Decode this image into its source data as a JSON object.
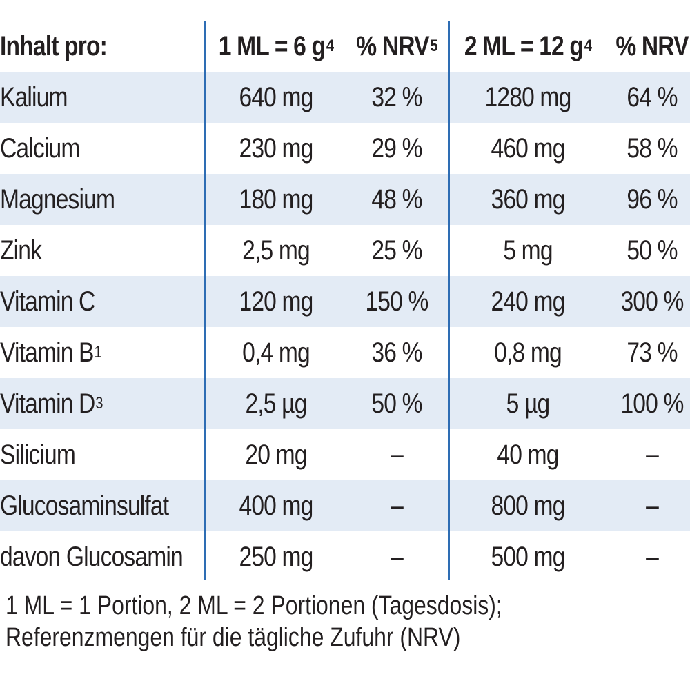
{
  "header": {
    "label": "Inhalt pro:",
    "col1": {
      "text": "1 ML = 6 g",
      "sup": "4"
    },
    "col2": {
      "text": "% NRV",
      "sup": "5"
    },
    "col3": {
      "text": "2 ML = 12 g",
      "sup": "4"
    },
    "col4": {
      "text": "% NRV"
    }
  },
  "rows": [
    {
      "name": "Kalium",
      "sub": "",
      "v1": "640 mg",
      "p1": "32 %",
      "v2": "1280 mg",
      "p2": "64 %"
    },
    {
      "name": "Calcium",
      "sub": "",
      "v1": "230 mg",
      "p1": "29 %",
      "v2": "460 mg",
      "p2": "58 %"
    },
    {
      "name": "Magnesium",
      "sub": "",
      "v1": "180 mg",
      "p1": "48 %",
      "v2": "360 mg",
      "p2": "96 %"
    },
    {
      "name": "Zink",
      "sub": "",
      "v1": "2,5 mg",
      "p1": "25 %",
      "v2": "5 mg",
      "p2": "50 %"
    },
    {
      "name": "Vitamin C",
      "sub": "",
      "v1": "120 mg",
      "p1": "150 %",
      "v2": "240 mg",
      "p2": "300 %"
    },
    {
      "name": "Vitamin B",
      "sub": "1",
      "v1": "0,4 mg",
      "p1": "36 %",
      "v2": "0,8 mg",
      "p2": "73 %"
    },
    {
      "name": "Vitamin D",
      "sub": "3",
      "v1": "2,5 µg",
      "p1": "50 %",
      "v2": "5 µg",
      "p2": "100 %"
    },
    {
      "name": "Silicium",
      "sub": "",
      "v1": "20 mg",
      "p1": "–",
      "v2": "40 mg",
      "p2": "–"
    },
    {
      "name": "Glucosaminsulfat",
      "sub": "",
      "v1": "400 mg",
      "p1": "–",
      "v2": "800 mg",
      "p2": "–"
    },
    {
      "name": "davon Glucosamin",
      "sub": "",
      "v1": "250 mg",
      "p1": "–",
      "v2": "500 mg",
      "p2": "–"
    }
  ],
  "footnote": {
    "line1": "1 ML = 1 Portion, 2 ML = 2 Portionen (Tagesdosis);",
    "line2": "Referenzmengen für die tägliche Zufuhr (NRV)"
  },
  "colors": {
    "shade": "#e3ebf5",
    "divider": "#2e6db4",
    "text": "#231f20"
  }
}
